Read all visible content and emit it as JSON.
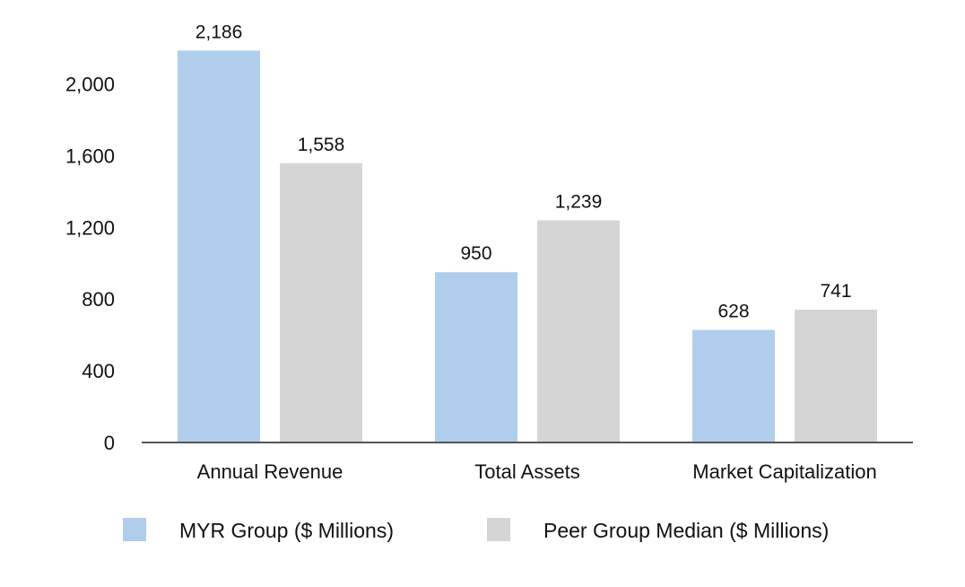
{
  "chart_data": {
    "type": "bar",
    "title": "",
    "xlabel": "",
    "ylabel": "",
    "categories": [
      "Annual Revenue",
      "Total Assets",
      "Market Capitalization"
    ],
    "series": [
      {
        "name": "MYR Group ($ Millions)",
        "values": [
          2186,
          950,
          628
        ],
        "color": "#b0ceeb"
      },
      {
        "name": "Peer Group Median ($ Millions)",
        "values": [
          1558,
          1239,
          741
        ],
        "color": "#d5d5d5"
      }
    ],
    "ylim": [
      0,
      2000
    ],
    "yticks": [
      0,
      400,
      800,
      1200,
      1600,
      2000
    ],
    "grid": false,
    "legend_position": "bottom",
    "axis_color": "#555555"
  }
}
